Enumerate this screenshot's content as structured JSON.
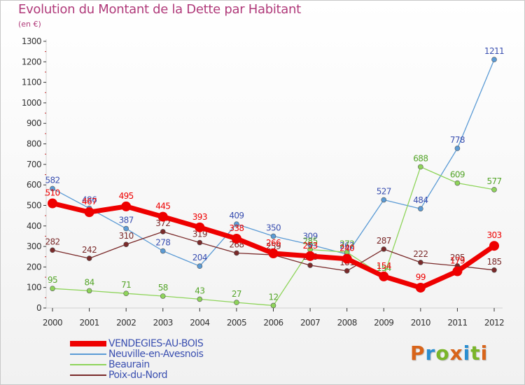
{
  "title": "Evolution du Montant de la Dette par Habitant",
  "subtitle": "(en €)",
  "brand": "Proxiti",
  "brand_colors": [
    "#d8641a",
    "#2a8ed0",
    "#7ab529",
    "#d8641a",
    "#2a8ed0",
    "#7ab529",
    "#d8641a"
  ],
  "chart_data": {
    "type": "line",
    "x": [
      "2000",
      "2001",
      "2002",
      "2003",
      "2004",
      "2005",
      "2006",
      "2007",
      "2008",
      "2009",
      "2010",
      "2011",
      "2012"
    ],
    "ylim": [
      0,
      1300
    ],
    "yticks": [
      0,
      100,
      200,
      300,
      400,
      500,
      600,
      700,
      800,
      900,
      1000,
      1100,
      1200,
      1300
    ],
    "grid": false,
    "legend": "bottom-left",
    "series": [
      {
        "name": "Neuville-en-Avesnois",
        "color": "#5b9bd5",
        "labelColor": "#3a4fb0",
        "width": 1.3,
        "marker": 3.5,
        "values": [
          582,
          486,
          387,
          278,
          204,
          409,
          350,
          309,
          262,
          527,
          484,
          778,
          1211
        ]
      },
      {
        "name": "Beaurain",
        "color": "#8ed45a",
        "labelColor": "#55a52a",
        "width": 1.3,
        "marker": 3.5,
        "values": [
          95,
          84,
          71,
          58,
          43,
          27,
          12,
          285,
          272,
          154,
          688,
          609,
          577
        ]
      },
      {
        "name": "Poix-du-Nord",
        "color": "#7a2a2a",
        "labelColor": "#7a2a2a",
        "width": 1.3,
        "marker": 3.5,
        "values": [
          282,
          242,
          310,
          372,
          319,
          268,
          259,
          208,
          181,
          287,
          222,
          205,
          185
        ]
      },
      {
        "name": "VENDEGIES-AU-BOIS",
        "color": "#ee0000",
        "labelColor": "#ee0000",
        "width": 7,
        "marker": 7,
        "values": [
          510,
          467,
          495,
          445,
          393,
          338,
          266,
          253,
          240,
          154,
          99,
          179,
          303
        ]
      }
    ]
  }
}
